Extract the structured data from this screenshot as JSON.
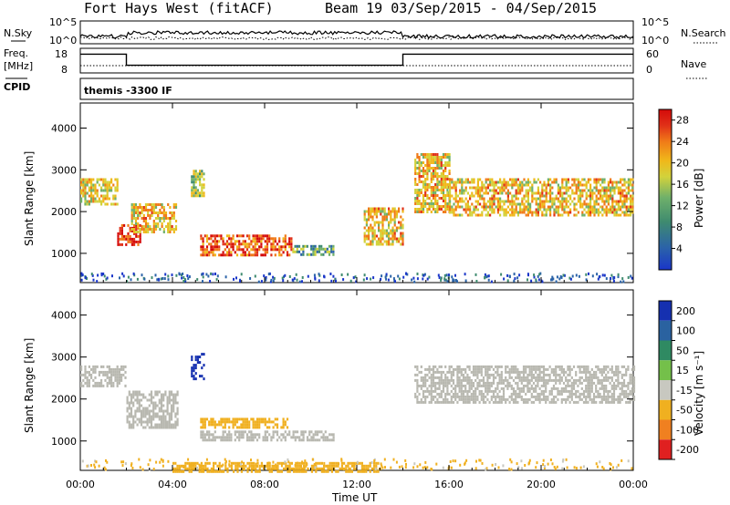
{
  "header": {
    "radar_title": "Fort Hays West (fitACF)",
    "beam_info": "Beam 19  03/Sep/2015 - 04/Sep/2015"
  },
  "strip_nsky": {
    "left_label": "N.Sky",
    "right_label": "N.Search",
    "left_ticks": [
      "10^5",
      "10^0"
    ],
    "right_ticks": [
      "10^5",
      "10^0"
    ]
  },
  "strip_freq": {
    "left_label_line1": "Freq.",
    "left_label_line2": "[MHz]",
    "right_label": "Nave",
    "left_ticks": [
      "18",
      "8"
    ],
    "right_ticks": [
      "60",
      "0"
    ],
    "freq_segments": [
      {
        "t0": 0.0,
        "t1": 2.0,
        "value": 16.8
      },
      {
        "t0": 2.0,
        "t1": 14.0,
        "value": 10.7
      },
      {
        "t0": 14.0,
        "t1": 24.0,
        "value": 16.8
      }
    ]
  },
  "cpid": {
    "label": "CPID",
    "text": "themis -3300 IF"
  },
  "time_axis": {
    "title": "Time UT",
    "ticks": [
      "00:00",
      "04:00",
      "08:00",
      "12:00",
      "16:00",
      "20:00",
      "00:00"
    ]
  },
  "power_panel": {
    "ylabel": "Slant Range [km]",
    "yticks": [
      "4000",
      "3000",
      "2000",
      "1000"
    ],
    "colorbar_label": "Power [dB]",
    "colorbar_ticks": [
      "28",
      "24",
      "20",
      "16",
      "12",
      "8",
      "4"
    ]
  },
  "velocity_panel": {
    "ylabel": "Slant Range [km]",
    "yticks": [
      "4000",
      "3000",
      "2000",
      "1000"
    ],
    "colorbar_label": "Velocity [m s⁻¹]",
    "colorbar_ticks": [
      "200",
      "100",
      "50",
      "15",
      "-15",
      "-50",
      "-100",
      "-200"
    ]
  },
  "colors": {
    "power_scale": [
      "#1a36c9",
      "#2b63a8",
      "#3f8b6f",
      "#6fb06a",
      "#d2d23c",
      "#f0b81a",
      "#f07a18",
      "#e03018",
      "#d40a0a"
    ],
    "velocity_scale": [
      "#1530b0",
      "#2a62a0",
      "#2f8a62",
      "#74c04a",
      "#c8c8c0",
      "#f0b020",
      "#f08020",
      "#e02020"
    ],
    "ground_scatter": "#b8b8b0"
  },
  "chart_data": [
    {
      "type": "heatmap",
      "title": "Power",
      "x_unit": "hours UT",
      "xlim": [
        0,
        24
      ],
      "ylim": [
        300,
        4600
      ],
      "ylabel": "Slant Range [km]",
      "value_range": [
        0,
        30
      ],
      "regions": [
        {
          "t0": 0.0,
          "t1": 1.6,
          "r0": 2200,
          "r1": 2800,
          "value": 16
        },
        {
          "t0": 1.6,
          "t1": 2.6,
          "r0": 1200,
          "r1": 1700,
          "value": 26
        },
        {
          "t0": 2.2,
          "t1": 4.2,
          "r0": 1500,
          "r1": 2200,
          "value": 18
        },
        {
          "t0": 4.8,
          "t1": 5.4,
          "r0": 2400,
          "r1": 3000,
          "value": 14
        },
        {
          "t0": 5.2,
          "t1": 9.2,
          "r0": 950,
          "r1": 1450,
          "value": 24
        },
        {
          "t0": 9.2,
          "t1": 11.0,
          "r0": 1000,
          "r1": 1200,
          "value": 10
        },
        {
          "t0": 12.3,
          "t1": 14.0,
          "r0": 1200,
          "r1": 2100,
          "value": 18
        },
        {
          "t0": 14.5,
          "t1": 16.0,
          "r0": 2000,
          "r1": 3400,
          "value": 18
        },
        {
          "t0": 16.0,
          "t1": 24.0,
          "r0": 1900,
          "r1": 2800,
          "value": 18
        }
      ]
    },
    {
      "type": "heatmap",
      "title": "Velocity",
      "x_unit": "hours UT",
      "xlim": [
        0,
        24
      ],
      "ylim": [
        300,
        4600
      ],
      "ylabel": "Slant Range [km]",
      "value_range": [
        -200,
        200
      ],
      "regions": [
        {
          "t0": 0.0,
          "t1": 2.0,
          "r0": 2300,
          "r1": 2800,
          "value": 0
        },
        {
          "t0": 2.0,
          "t1": 4.2,
          "r0": 1300,
          "r1": 2200,
          "value": 0
        },
        {
          "t0": 4.8,
          "t1": 5.4,
          "r0": 2500,
          "r1": 3100,
          "value": 200
        },
        {
          "t0": 5.2,
          "t1": 9.0,
          "r0": 1300,
          "r1": 1550,
          "value": -60
        },
        {
          "t0": 5.2,
          "t1": 11.0,
          "r0": 1000,
          "r1": 1250,
          "value": 0
        },
        {
          "t0": 14.5,
          "t1": 24.0,
          "r0": 1900,
          "r1": 2800,
          "value": 0
        },
        {
          "t0": 4.0,
          "t1": 13.0,
          "r0": 300,
          "r1": 500,
          "value": -60
        }
      ]
    }
  ]
}
